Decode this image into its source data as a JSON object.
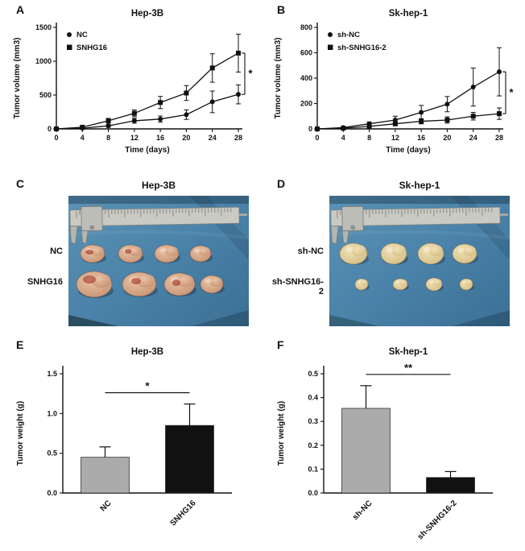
{
  "panels": {
    "A": {
      "letter": "A"
    },
    "B": {
      "letter": "B"
    },
    "C": {
      "letter": "C",
      "title": "Hep-3B",
      "rows": [
        {
          "label": "NC"
        },
        {
          "label": "SNHG16"
        }
      ]
    },
    "D": {
      "letter": "D",
      "title": "Sk-hep-1",
      "rows": [
        {
          "label": "sh-NC"
        },
        {
          "label": "sh-SNHG16-2"
        }
      ]
    },
    "E": {
      "letter": "E"
    },
    "F": {
      "letter": "F"
    }
  },
  "colors": {
    "line_series": "#111111",
    "bar_gray": "#ababab",
    "bar_black": "#111111",
    "cloth_blue": "#4a82a9"
  },
  "chart_data": [
    {
      "id": "A",
      "type": "line",
      "title": "Hep-3B",
      "xlabel": "Time (days)",
      "ylabel": "Tumor volume (mm3)",
      "x": [
        0,
        4,
        8,
        12,
        16,
        20,
        24,
        28
      ],
      "xlim": [
        0,
        28
      ],
      "ylim": [
        0,
        1500
      ],
      "yticks": [
        0,
        500,
        1000,
        1500
      ],
      "legend_position": "top-left",
      "grid": false,
      "series": [
        {
          "name": "NC",
          "marker": "circle",
          "values": [
            0,
            10,
            45,
            120,
            145,
            210,
            400,
            510
          ],
          "errors": [
            0,
            5,
            20,
            35,
            45,
            70,
            160,
            140
          ]
        },
        {
          "name": "SNHG16",
          "marker": "square",
          "values": [
            0,
            25,
            120,
            230,
            390,
            530,
            900,
            1120
          ],
          "errors": [
            0,
            10,
            35,
            50,
            90,
            110,
            210,
            280
          ]
        }
      ],
      "significance": "*"
    },
    {
      "id": "B",
      "type": "line",
      "title": "Sk-hep-1",
      "xlabel": "Time (days)",
      "ylabel": "Tumor volume (mm3)",
      "x": [
        0,
        4,
        8,
        12,
        16,
        20,
        24,
        28
      ],
      "xlim": [
        0,
        28
      ],
      "ylim": [
        0,
        800
      ],
      "yticks": [
        0,
        200,
        400,
        600,
        800
      ],
      "legend_position": "top-left",
      "grid": false,
      "series": [
        {
          "name": "sh-NC",
          "marker": "circle",
          "values": [
            0,
            10,
            40,
            70,
            130,
            195,
            330,
            450
          ],
          "errors": [
            0,
            5,
            15,
            30,
            55,
            60,
            150,
            190
          ]
        },
        {
          "name": "sh-SNHG16-2",
          "marker": "square",
          "values": [
            0,
            5,
            20,
            40,
            60,
            70,
            100,
            120
          ],
          "errors": [
            0,
            3,
            8,
            15,
            20,
            25,
            30,
            45
          ]
        }
      ],
      "significance": "*"
    },
    {
      "id": "E",
      "type": "bar",
      "title": "Hep-3B",
      "xlabel": "",
      "ylabel": "Tumor weight (g)",
      "categories": [
        "NC",
        "SNHG16"
      ],
      "values": [
        0.45,
        0.85
      ],
      "errors": [
        0.13,
        0.27
      ],
      "ylim": [
        0,
        1.5
      ],
      "yticks": [
        0,
        0.5,
        1.0,
        1.5
      ],
      "ytick_labels": [
        "0.0",
        "0.5",
        "1.0",
        "1.5"
      ],
      "bar_colors": [
        "#ababab",
        "#111111"
      ],
      "grid": false,
      "significance": "*"
    },
    {
      "id": "F",
      "type": "bar",
      "title": "Sk-hep-1",
      "xlabel": "",
      "ylabel": "Tumor weight (g)",
      "categories": [
        "sh-NC",
        "sh-SNHG16-2"
      ],
      "values": [
        0.355,
        0.065
      ],
      "errors": [
        0.095,
        0.025
      ],
      "ylim": [
        0,
        0.5
      ],
      "yticks": [
        0,
        0.1,
        0.2,
        0.3,
        0.4,
        0.5
      ],
      "ytick_labels": [
        "0.0",
        "0.1",
        "0.2",
        "0.3",
        "0.4",
        "0.5"
      ],
      "bar_colors": [
        "#ababab",
        "#111111"
      ],
      "grid": false,
      "significance": "**"
    }
  ]
}
